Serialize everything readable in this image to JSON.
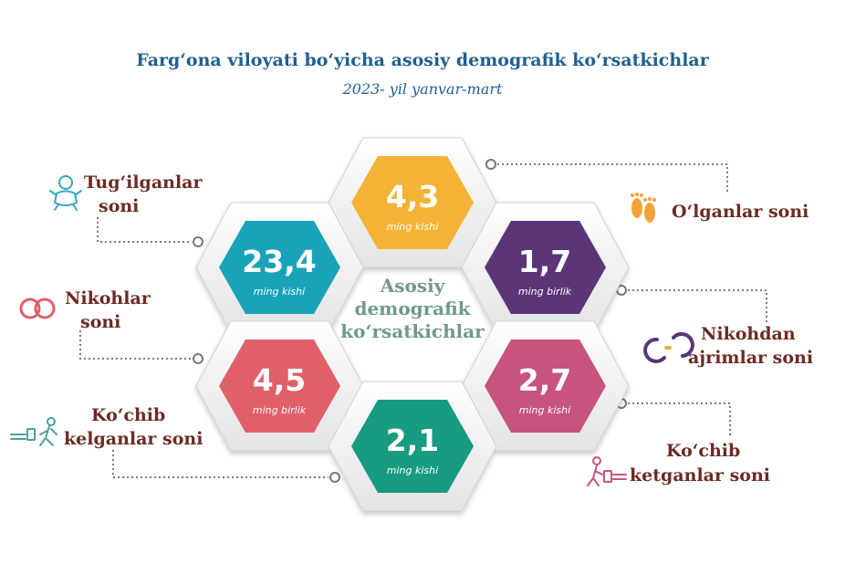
{
  "header": {
    "title": "Farg‘ona viloyati bo‘yicha asosiy demografik ko‘rsatkichlar",
    "subtitle": "2023- yil yanvar-mart"
  },
  "center": {
    "line1": "Asosiy",
    "line2": "demografik",
    "line3": "ko‘rsatkichlar"
  },
  "indicators": [
    {
      "label1": "Tug‘ilganlar",
      "label2": "soni",
      "value": "23,4",
      "unit": "ming kishi",
      "color": "#1aa3b8",
      "icon": "baby-icon"
    },
    {
      "label1": "O‘lganlar soni",
      "label2": "",
      "value": "4,3",
      "unit": "ming kishi",
      "color": "#f4b336",
      "icon": "footprints-icon"
    },
    {
      "label1": "Nikohdan",
      "label2": "ajrimlar soni",
      "value": "1,7",
      "unit": "ming birlik",
      "color": "#5b3578",
      "icon": "broken-rings-icon"
    },
    {
      "label1": "Nikohlar",
      "label2": "soni",
      "value": "4,5",
      "unit": "ming birlik",
      "color": "#e0606a",
      "icon": "rings-icon"
    },
    {
      "label1": "Ko‘chib",
      "label2": "ketganlar soni",
      "value": "2,7",
      "unit": "ming kishi",
      "color": "#c7537f",
      "icon": "traveler-leaving-icon"
    },
    {
      "label1": "Ko‘chib",
      "label2": "kelganlar soni",
      "value": "2,1",
      "unit": "ming kishi",
      "color": "#189b80",
      "icon": "traveler-arriving-icon"
    }
  ]
}
